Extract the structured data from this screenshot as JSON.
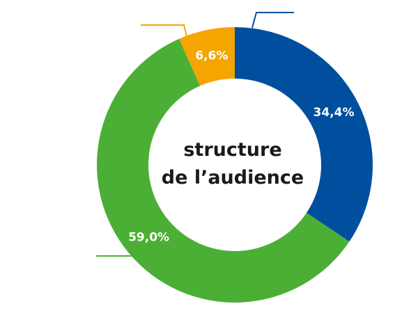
{
  "chart_data": {
    "type": "pie",
    "donut": true,
    "center_text": [
      "structure",
      "de l’audience"
    ],
    "slices": [
      {
        "value": 34.4,
        "label": "34,4%",
        "color": "#004f9f"
      },
      {
        "value": 59.0,
        "label": "59,0%",
        "color": "#4caf35"
      },
      {
        "value": 6.6,
        "label": "6,6%",
        "color": "#f5a500"
      }
    ],
    "grid": false,
    "legend": "none"
  }
}
